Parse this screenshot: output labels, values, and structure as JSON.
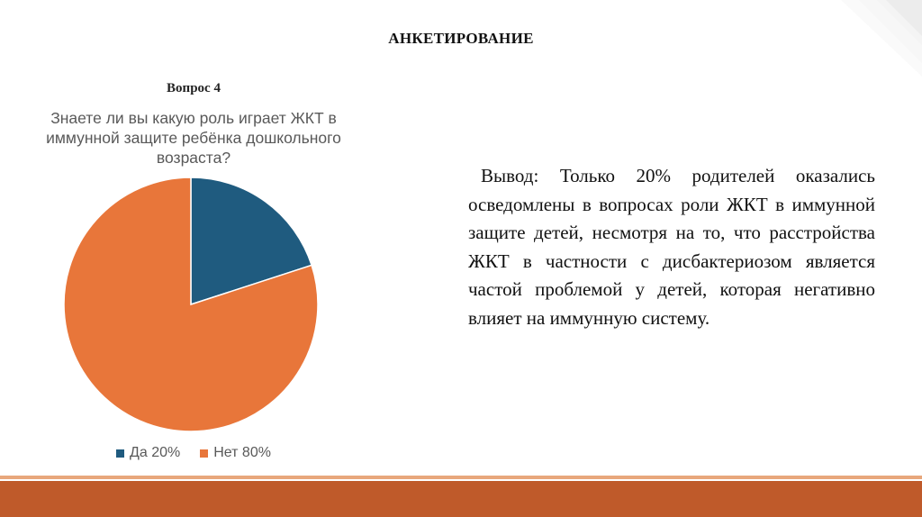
{
  "slide": {
    "title": "АНКЕТИРОВАНИЕ",
    "conclusion": "Вывод: Только 20% родителей оказались осведомлены в вопросах роли ЖКТ в иммунной защите детей, несмотря на то, что расстройства ЖКТ в частности с дисбактериозом является частой проблемой у детей, которая негативно влияет на иммунную систему."
  },
  "chart_data": {
    "type": "pie",
    "title": "Вопрос 4",
    "subtitle": "Знаете ли вы какую роль играет ЖКТ в иммунной защите ребёнка дошкольного возраста?",
    "categories": [
      "Да",
      "Нет"
    ],
    "values": [
      20,
      80
    ],
    "colors": [
      "#1F5B7F",
      "#E8763A"
    ],
    "legend": [
      {
        "label": "Да 20%",
        "color": "#1F5B7F"
      },
      {
        "label": "Нет 80%",
        "color": "#E8763A"
      }
    ],
    "legend_position": "bottom"
  },
  "theme": {
    "accent": "#BF5A2A",
    "accent_light": "#E8A77C"
  }
}
